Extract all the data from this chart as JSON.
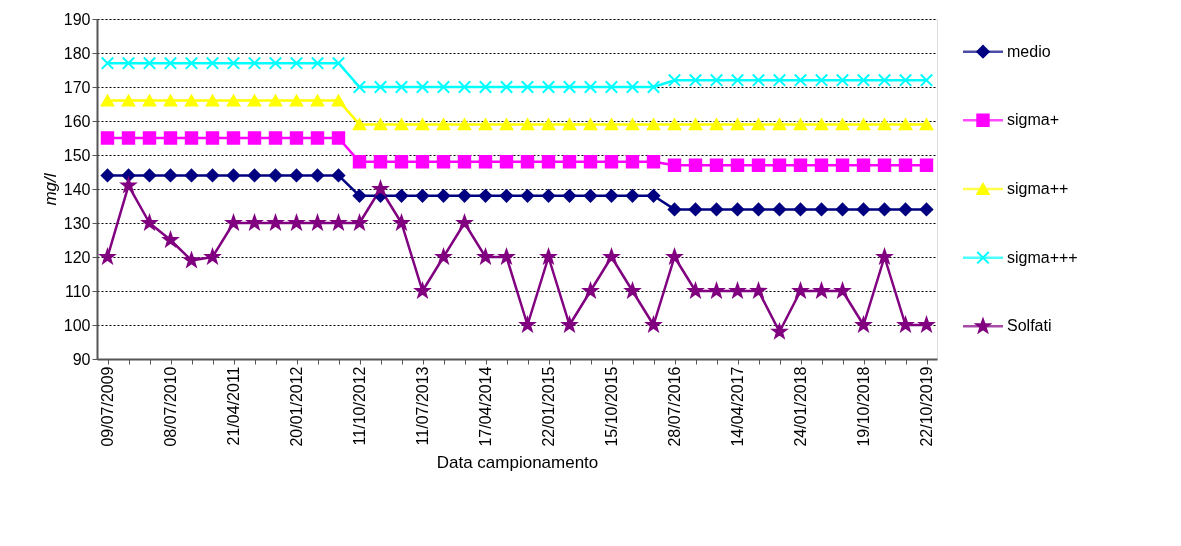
{
  "chart_data": {
    "type": "line",
    "xlabel": "Data campionamento",
    "ylabel": "mg/l",
    "categories": [
      "09/07/2009",
      null,
      null,
      "08/07/2010",
      null,
      null,
      "21/04/2011",
      null,
      null,
      "20/01/2012",
      null,
      null,
      "11/10/2012",
      null,
      null,
      "11/07/2013",
      null,
      null,
      "17/04/2014",
      null,
      null,
      "22/01/2015",
      null,
      null,
      "15/10/2015",
      null,
      null,
      "28/07/2016",
      null,
      null,
      "14/04/2017",
      null,
      null,
      "24/01/2018",
      null,
      null,
      "19/10/2018",
      null,
      null,
      "22/10/2019"
    ],
    "series": [
      {
        "name": "medio",
        "color": "#000080",
        "marker": "diamond",
        "values": [
          144,
          144,
          144,
          144,
          144,
          144,
          144,
          144,
          144,
          144,
          144,
          144,
          138,
          138,
          138,
          138,
          138,
          138,
          138,
          138,
          138,
          138,
          138,
          138,
          138,
          138,
          138,
          134,
          134,
          134,
          134,
          134,
          134,
          134,
          134,
          134,
          134,
          134,
          134,
          134
        ]
      },
      {
        "name": "sigma+",
        "color": "#ff00ff",
        "marker": "square",
        "values": [
          155,
          155,
          155,
          155,
          155,
          155,
          155,
          155,
          155,
          155,
          155,
          155,
          148,
          148,
          148,
          148,
          148,
          148,
          148,
          148,
          148,
          148,
          148,
          148,
          148,
          148,
          148,
          147,
          147,
          147,
          147,
          147,
          147,
          147,
          147,
          147,
          147,
          147,
          147,
          147
        ]
      },
      {
        "name": "sigma++",
        "color": "#ffff00",
        "marker": "triangle",
        "values": [
          166,
          166,
          166,
          166,
          166,
          166,
          166,
          166,
          166,
          166,
          166,
          166,
          159,
          159,
          159,
          159,
          159,
          159,
          159,
          159,
          159,
          159,
          159,
          159,
          159,
          159,
          159,
          159,
          159,
          159,
          159,
          159,
          159,
          159,
          159,
          159,
          159,
          159,
          159,
          159
        ]
      },
      {
        "name": "sigma+++",
        "color": "#00ffff",
        "marker": "cross",
        "values": [
          177,
          177,
          177,
          177,
          177,
          177,
          177,
          177,
          177,
          177,
          177,
          177,
          170,
          170,
          170,
          170,
          170,
          170,
          170,
          170,
          170,
          170,
          170,
          170,
          170,
          170,
          170,
          172,
          172,
          172,
          172,
          172,
          172,
          172,
          172,
          172,
          172,
          172,
          172,
          172
        ]
      },
      {
        "name": "Solfati",
        "color": "#800080",
        "marker": "star",
        "values": [
          120,
          141,
          130,
          125,
          119,
          120,
          130,
          130,
          130,
          130,
          130,
          130,
          130,
          140,
          130,
          110,
          120,
          130,
          120,
          120,
          100,
          120,
          100,
          110,
          120,
          110,
          100,
          120,
          110,
          110,
          110,
          110,
          98,
          110,
          110,
          110,
          100,
          120,
          100,
          100
        ]
      }
    ],
    "ylim": [
      90,
      190
    ],
    "yticks": [
      90,
      100,
      110,
      120,
      130,
      140,
      150,
      160,
      170,
      180,
      190
    ],
    "grid": "y",
    "legend": "right"
  }
}
